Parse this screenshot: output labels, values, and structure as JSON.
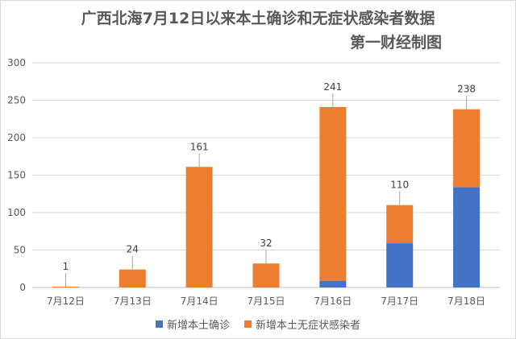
{
  "chart_data": {
    "type": "bar",
    "stacked": true,
    "title": "广西北海7月12日以来本土确诊和无症状感染者数据",
    "subtitle": "第一财经制图",
    "categories": [
      "7月12日",
      "7月13日",
      "7月14日",
      "7月15日",
      "7月16日",
      "7月17日",
      "7月18日"
    ],
    "series": [
      {
        "name": "新增本土确诊",
        "color": "#4472c4",
        "values": [
          0,
          0,
          0,
          0,
          9,
          59,
          134
        ]
      },
      {
        "name": "新增本土无症状感染者",
        "color": "#ed7d31",
        "values": [
          1,
          24,
          161,
          32,
          232,
          51,
          104
        ]
      }
    ],
    "totals": [
      "1",
      "24",
      "161",
      "32",
      "241",
      "110",
      "238"
    ],
    "ylim": [
      0,
      300
    ],
    "yticks": [
      "0",
      "50",
      "100",
      "150",
      "200",
      "250",
      "300"
    ],
    "grid": true,
    "legend_position": "bottom"
  }
}
